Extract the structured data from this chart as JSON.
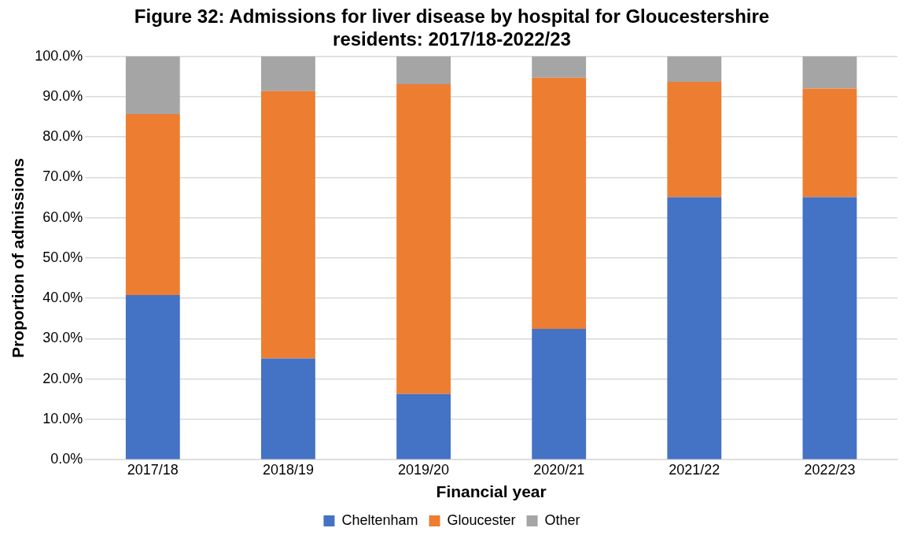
{
  "chart_data": {
    "type": "bar",
    "stacked": true,
    "title": "Figure 32: Admissions for liver disease by hospital for Gloucestershire residents: 2017/18-2022/23",
    "xlabel": "Financial year",
    "ylabel": "Proportion of admissions",
    "categories": [
      "2017/18",
      "2018/19",
      "2019/20",
      "2020/21",
      "2021/22",
      "2022/23"
    ],
    "series": [
      {
        "name": "Cheltenham",
        "color": "#4472c4",
        "values": [
          40.8,
          25.1,
          16.3,
          32.4,
          65.1,
          65.1
        ]
      },
      {
        "name": "Gloucester",
        "color": "#ed7d31",
        "values": [
          44.9,
          66.3,
          76.8,
          62.3,
          28.6,
          26.9
        ]
      },
      {
        "name": "Other",
        "color": "#a5a5a5",
        "values": [
          14.3,
          8.6,
          6.9,
          5.3,
          6.3,
          8.0
        ]
      }
    ],
    "ylim": [
      0,
      100
    ],
    "yticks": [
      {
        "value": 0,
        "label": "0.0%"
      },
      {
        "value": 10,
        "label": "10.0%"
      },
      {
        "value": 20,
        "label": "20.0%"
      },
      {
        "value": 30,
        "label": "30.0%"
      },
      {
        "value": 40,
        "label": "40.0%"
      },
      {
        "value": 50,
        "label": "50.0%"
      },
      {
        "value": 60,
        "label": "60.0%"
      },
      {
        "value": 70,
        "label": "70.0%"
      },
      {
        "value": 80,
        "label": "80.0%"
      },
      {
        "value": 90,
        "label": "90.0%"
      },
      {
        "value": 100,
        "label": "100.0%"
      }
    ],
    "grid": "y",
    "legend": "bottom"
  }
}
